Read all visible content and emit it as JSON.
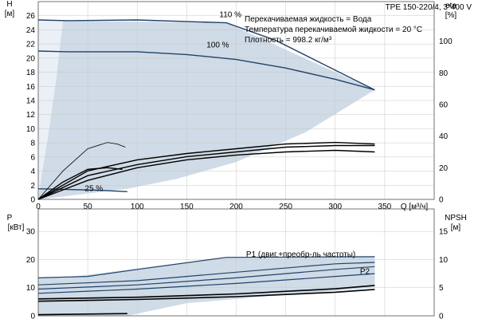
{
  "chart_data": [
    {
      "type": "line",
      "header": "TPE 150-220/4, 3*400 V",
      "info": [
        "Перекачиваемая жидкость = Вода",
        "Температура перекачиваемой жидкости = 20 °C",
        "Плотность = 998.2 кг/м³"
      ],
      "ylabel_left": "H",
      "yunit_left": "[м]",
      "ylabel_right": "eta",
      "yunit_right": "[%]",
      "xlabel": "Q [м³/ч]",
      "xlim": [
        0,
        400
      ],
      "ylim_left": [
        0,
        28
      ],
      "ylim_right": [
        0,
        125
      ],
      "xticks": [
        "0",
        "50",
        "100",
        "150",
        "200",
        "250",
        "300",
        "350"
      ],
      "yticks_left": [
        "0",
        "2",
        "4",
        "6",
        "8",
        "10",
        "12",
        "14",
        "16",
        "18",
        "20",
        "22",
        "24",
        "26"
      ],
      "yticks_right": [
        "0",
        "20",
        "40",
        "60",
        "80",
        "100"
      ],
      "grid": true,
      "curve_labels": [
        "110 %",
        "100 %",
        "25 %"
      ],
      "operating_range": {
        "color": "#cfdbe6",
        "upper": {
          "x": [
            25,
            30,
            190,
            340
          ],
          "y": [
            25.4,
            25.3,
            25.0,
            15.5
          ]
        },
        "right": {
          "x": [
            340,
            270,
            200,
            140,
            90
          ],
          "y": [
            15.5,
            9.5,
            5.3,
            2.9,
            1.5
          ]
        },
        "left": {
          "x": [
            0,
            4,
            10,
            18,
            25
          ],
          "y": [
            0,
            4,
            9,
            17,
            25.4
          ]
        }
      },
      "series": [
        {
          "color": "#21436b",
          "x": [
            0,
            30,
            100,
            190,
            240,
            290,
            340
          ],
          "y": [
            25.4,
            25.3,
            25.4,
            25.0,
            22.5,
            19.0,
            15.5
          ]
        },
        {
          "color": "#21436b",
          "x": [
            0,
            30,
            100,
            150,
            200,
            250,
            300,
            340
          ],
          "y": [
            21.0,
            20.9,
            20.9,
            20.5,
            19.8,
            18.6,
            17.0,
            15.5
          ]
        },
        {
          "color": "#21436b",
          "x": [
            0,
            30,
            60,
            90
          ],
          "y": [
            1.5,
            1.4,
            1.3,
            1.1
          ]
        },
        {
          "color": "#000000",
          "axis": "right",
          "x": [
            0,
            25,
            50,
            70,
            80,
            88
          ],
          "y": [
            0,
            18,
            32,
            36,
            35,
            33
          ]
        },
        {
          "color": "#000000",
          "axis": "right",
          "x": [
            0,
            25,
            50,
            70,
            85
          ],
          "y": [
            0,
            11,
            19,
            20,
            19
          ]
        },
        {
          "color": "#000000",
          "axis": "right",
          "x": [
            0,
            50,
            100,
            150,
            200,
            250,
            300,
            340
          ],
          "y": [
            0,
            18,
            25,
            29,
            32,
            35,
            36,
            35
          ]
        },
        {
          "color": "#000000",
          "axis": "right",
          "x": [
            0,
            50,
            100,
            150,
            200,
            250,
            300,
            340
          ],
          "y": [
            0,
            15,
            22,
            27,
            30,
            33,
            34,
            34
          ]
        },
        {
          "color": "#000000",
          "axis": "right",
          "x": [
            0,
            50,
            100,
            150,
            200,
            250,
            300,
            340
          ],
          "y": [
            0,
            12,
            20,
            25,
            28,
            30,
            31,
            30
          ]
        }
      ]
    },
    {
      "type": "line",
      "ylabel_left": "P",
      "yunit_left": "[кВт]",
      "ylabel_right": "NPSH",
      "yunit_right": "[м]",
      "xlim": [
        0,
        400
      ],
      "ylim_left": [
        0,
        38
      ],
      "ylim_right": [
        0,
        19
      ],
      "yticks_left": [
        "0",
        "10",
        "20",
        "30"
      ],
      "yticks_right": [
        "0",
        "5",
        "10",
        "15"
      ],
      "grid": true,
      "curve_labels": [
        "P1 (двиг.+преобр-ль частоты)",
        "P2"
      ],
      "operating_range": {
        "color": "#cfdbe6",
        "upper": {
          "x": [
            25,
            190,
            340
          ],
          "y": [
            13.5,
            20.8,
            21.0
          ]
        },
        "lower": {
          "x": [
            90,
            150,
            250,
            340
          ],
          "y": [
            0,
            4.5,
            7.5,
            10.0
          ]
        },
        "left": {
          "x": [
            0,
            25
          ],
          "y": [
            13.5,
            13.5
          ]
        }
      },
      "series": [
        {
          "color": "#21436b",
          "x": [
            0,
            50,
            100,
            190,
            260,
            340
          ],
          "y": [
            13.5,
            14.0,
            16.5,
            20.8,
            20.9,
            21.0
          ]
        },
        {
          "color": "#21436b",
          "x": [
            0,
            100,
            200,
            300,
            340
          ],
          "y": [
            11.0,
            12.5,
            15.5,
            18.5,
            19.0
          ]
        },
        {
          "color": "#21436b",
          "x": [
            0,
            100,
            200,
            300,
            340
          ],
          "y": [
            9.5,
            11.0,
            13.5,
            16.5,
            17.5
          ]
        },
        {
          "color": "#21436b",
          "x": [
            0,
            100,
            200,
            300,
            340
          ],
          "y": [
            8.0,
            9.5,
            11.5,
            14.0,
            15.0
          ]
        },
        {
          "color": "#000000",
          "axis": "right",
          "x": [
            0,
            100,
            200,
            300,
            340
          ],
          "y": [
            3.0,
            3.3,
            3.9,
            4.8,
            5.4
          ]
        },
        {
          "color": "#000000",
          "axis": "right",
          "x": [
            0,
            100,
            200,
            300,
            340
          ],
          "y": [
            2.6,
            2.9,
            3.4,
            4.2,
            4.7
          ]
        },
        {
          "color": "#000000",
          "x": [
            0,
            90
          ],
          "y": [
            0.4,
            0.8
          ]
        }
      ]
    }
  ]
}
